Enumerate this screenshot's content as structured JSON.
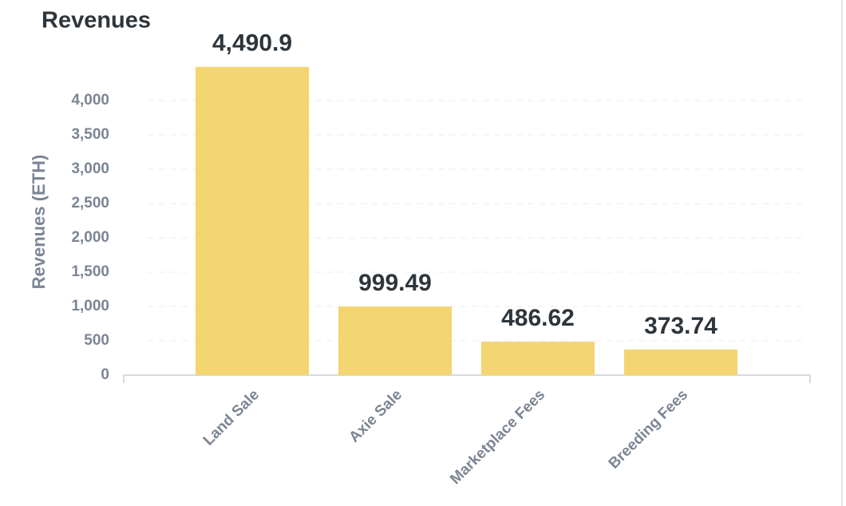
{
  "chart_data": {
    "type": "bar",
    "title": "Revenues",
    "y_label": "Revenues (ETH)",
    "categories": [
      "Land Sale",
      "Axie Sale",
      "Marketplace Fees",
      "Breeding Fees"
    ],
    "values": [
      4490.9,
      999.49,
      486.62,
      373.74
    ],
    "value_labels": [
      "4,490.9",
      "999.49",
      "486.62",
      "373.74"
    ],
    "color": "#f3d572",
    "ylim": [
      0,
      4500
    ],
    "yticks": [
      0,
      500,
      {
        "value": 1000,
        "label": "1,000"
      },
      {
        "value": 1500,
        "label": "1,500"
      },
      {
        "value": 2000,
        "label": "2,000"
      },
      {
        "value": 2500,
        "label": "2,500"
      },
      {
        "value": 3000,
        "label": "3,000"
      },
      {
        "value": 3500,
        "label": "3,500"
      },
      {
        "value": 4000,
        "label": "4,000"
      }
    ],
    "grid": true
  }
}
